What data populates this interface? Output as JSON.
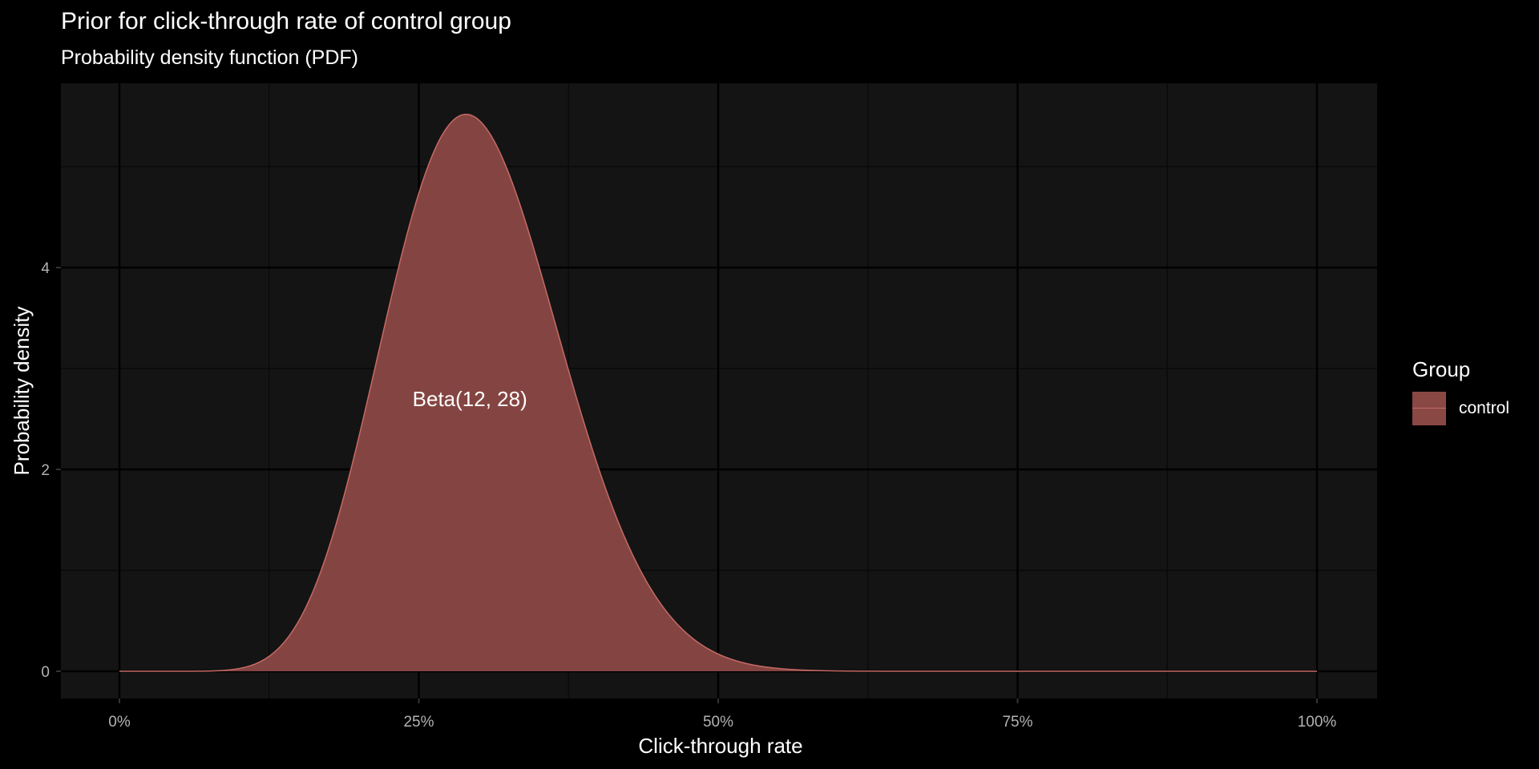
{
  "title": "Prior for click-through rate of control group",
  "subtitle": "Probability density function (PDF)",
  "colors": {
    "background": "#000000",
    "panel": "#141414",
    "grid_major": "#000000",
    "grid_minor": "#0a0a0a",
    "fill": "#8a4845",
    "line": "#c66a64"
  },
  "chart_data": {
    "type": "area",
    "distribution": {
      "name": "Beta",
      "alpha": 12,
      "beta": 28
    },
    "xlabel": "Click-through rate",
    "ylabel": "Probability density",
    "xlim": [
      0,
      1
    ],
    "ylim": [
      0,
      5.5
    ],
    "x_ticks": [
      0,
      0.25,
      0.5,
      0.75,
      1
    ],
    "x_tick_labels": [
      "0%",
      "25%",
      "50%",
      "75%",
      "100%"
    ],
    "y_ticks": [
      0,
      2,
      4
    ],
    "y_tick_labels": [
      "0",
      "2",
      "4"
    ],
    "annotation": {
      "text": "Beta(12, 28)",
      "x": 0.3,
      "y": 2.7
    },
    "legend": {
      "title": "Group",
      "entries": [
        "control"
      ],
      "position": "right"
    },
    "grid": true
  }
}
